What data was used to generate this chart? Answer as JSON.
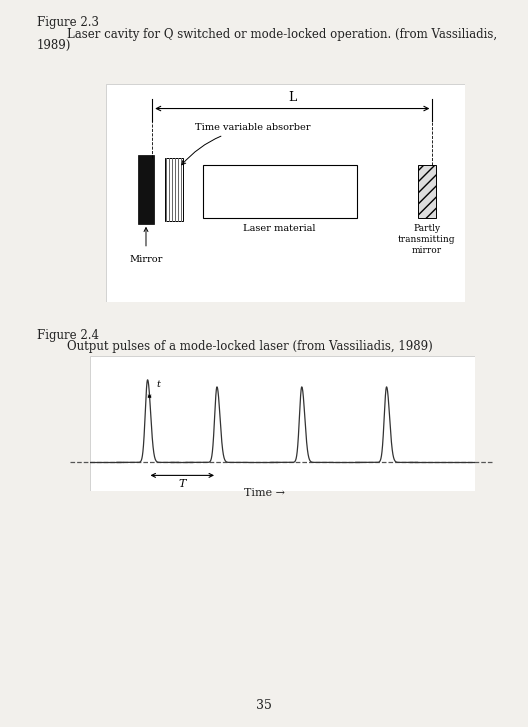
{
  "fig_width": 5.28,
  "fig_height": 7.27,
  "bg_color": "#f2f0ec",
  "fig23_title": "Figure 2.3",
  "fig23_caption_line1": "        Laser cavity for Q switched or mode-locked operation. (from Vassiliadis,",
  "fig23_caption_line2": "1989)",
  "fig24_title": "Figure 2.4",
  "fig24_caption": "        Output pulses of a mode-locked laser (from Vassiliadis, 1989)",
  "page_number": "35",
  "text_color": "#222222",
  "diagram_bg": "#ffffff"
}
